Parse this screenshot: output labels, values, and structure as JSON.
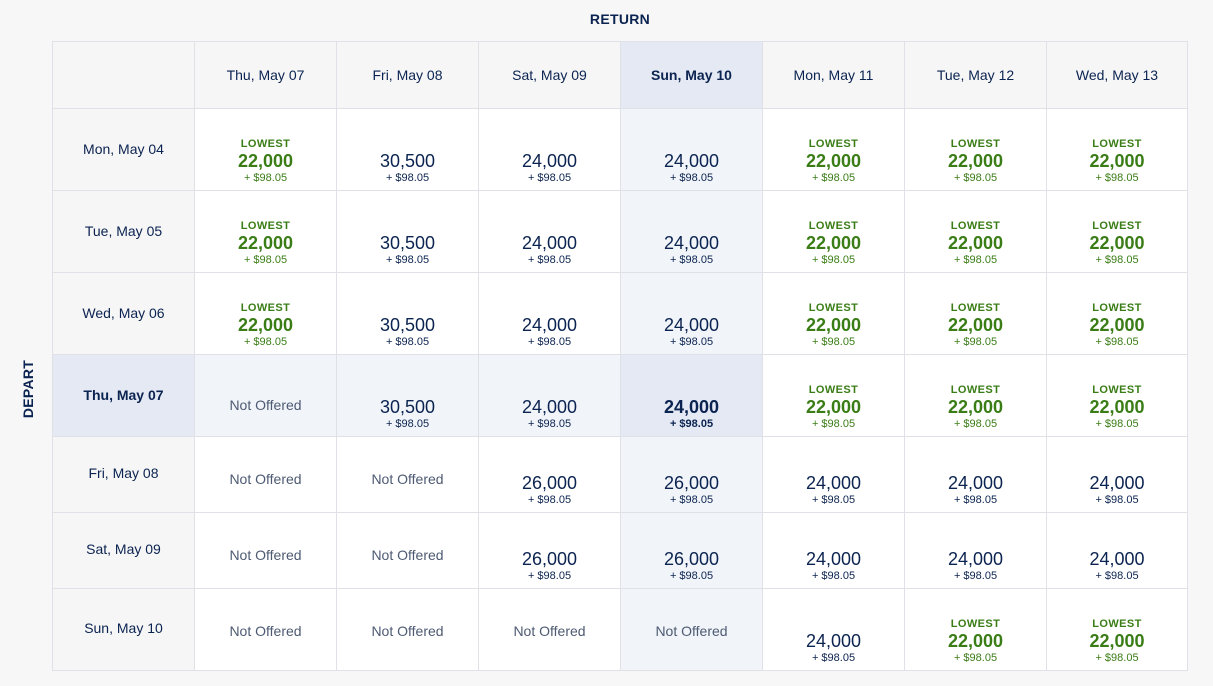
{
  "labels": {
    "return": "RETURN",
    "depart": "DEPART"
  },
  "columns": [
    "Thu, May 07",
    "Fri, May 08",
    "Sat, May 09",
    "Sun, May 10",
    "Mon, May 11",
    "Tue, May 12",
    "Wed, May 13"
  ],
  "selected_return_index": 3,
  "selected_depart_index": 3,
  "lowest_label": "LOWEST",
  "not_offered_label": "Not Offered",
  "rows": [
    {
      "depart": "Mon, May 04",
      "cells": [
        {
          "lowest": true,
          "miles": "22,000",
          "tax": "+ $98.05"
        },
        {
          "lowest": false,
          "miles": "30,500",
          "tax": "+ $98.05"
        },
        {
          "lowest": false,
          "miles": "24,000",
          "tax": "+ $98.05"
        },
        {
          "lowest": false,
          "miles": "24,000",
          "tax": "+ $98.05"
        },
        {
          "lowest": true,
          "miles": "22,000",
          "tax": "+ $98.05"
        },
        {
          "lowest": true,
          "miles": "22,000",
          "tax": "+ $98.05"
        },
        {
          "lowest": true,
          "miles": "22,000",
          "tax": "+ $98.05"
        }
      ]
    },
    {
      "depart": "Tue, May 05",
      "cells": [
        {
          "lowest": true,
          "miles": "22,000",
          "tax": "+ $98.05"
        },
        {
          "lowest": false,
          "miles": "30,500",
          "tax": "+ $98.05"
        },
        {
          "lowest": false,
          "miles": "24,000",
          "tax": "+ $98.05"
        },
        {
          "lowest": false,
          "miles": "24,000",
          "tax": "+ $98.05"
        },
        {
          "lowest": true,
          "miles": "22,000",
          "tax": "+ $98.05"
        },
        {
          "lowest": true,
          "miles": "22,000",
          "tax": "+ $98.05"
        },
        {
          "lowest": true,
          "miles": "22,000",
          "tax": "+ $98.05"
        }
      ]
    },
    {
      "depart": "Wed, May 06",
      "cells": [
        {
          "lowest": true,
          "miles": "22,000",
          "tax": "+ $98.05"
        },
        {
          "lowest": false,
          "miles": "30,500",
          "tax": "+ $98.05"
        },
        {
          "lowest": false,
          "miles": "24,000",
          "tax": "+ $98.05"
        },
        {
          "lowest": false,
          "miles": "24,000",
          "tax": "+ $98.05"
        },
        {
          "lowest": true,
          "miles": "22,000",
          "tax": "+ $98.05"
        },
        {
          "lowest": true,
          "miles": "22,000",
          "tax": "+ $98.05"
        },
        {
          "lowest": true,
          "miles": "22,000",
          "tax": "+ $98.05"
        }
      ]
    },
    {
      "depart": "Thu, May 07",
      "cells": [
        {
          "not_offered": true
        },
        {
          "lowest": false,
          "miles": "30,500",
          "tax": "+ $98.05"
        },
        {
          "lowest": false,
          "miles": "24,000",
          "tax": "+ $98.05"
        },
        {
          "lowest": false,
          "miles": "24,000",
          "tax": "+ $98.05"
        },
        {
          "lowest": true,
          "miles": "22,000",
          "tax": "+ $98.05"
        },
        {
          "lowest": true,
          "miles": "22,000",
          "tax": "+ $98.05"
        },
        {
          "lowest": true,
          "miles": "22,000",
          "tax": "+ $98.05"
        }
      ]
    },
    {
      "depart": "Fri, May 08",
      "cells": [
        {
          "not_offered": true
        },
        {
          "not_offered": true
        },
        {
          "lowest": false,
          "miles": "26,000",
          "tax": "+ $98.05"
        },
        {
          "lowest": false,
          "miles": "26,000",
          "tax": "+ $98.05"
        },
        {
          "lowest": false,
          "miles": "24,000",
          "tax": "+ $98.05"
        },
        {
          "lowest": false,
          "miles": "24,000",
          "tax": "+ $98.05"
        },
        {
          "lowest": false,
          "miles": "24,000",
          "tax": "+ $98.05"
        }
      ]
    },
    {
      "depart": "Sat, May 09",
      "cells": [
        {
          "not_offered": true
        },
        {
          "not_offered": true
        },
        {
          "lowest": false,
          "miles": "26,000",
          "tax": "+ $98.05"
        },
        {
          "lowest": false,
          "miles": "26,000",
          "tax": "+ $98.05"
        },
        {
          "lowest": false,
          "miles": "24,000",
          "tax": "+ $98.05"
        },
        {
          "lowest": false,
          "miles": "24,000",
          "tax": "+ $98.05"
        },
        {
          "lowest": false,
          "miles": "24,000",
          "tax": "+ $98.05"
        }
      ]
    },
    {
      "depart": "Sun, May 10",
      "cells": [
        {
          "not_offered": true
        },
        {
          "not_offered": true
        },
        {
          "not_offered": true
        },
        {
          "not_offered": true
        },
        {
          "lowest": false,
          "miles": "24,000",
          "tax": "+ $98.05"
        },
        {
          "lowest": true,
          "miles": "22,000",
          "tax": "+ $98.05"
        },
        {
          "lowest": true,
          "miles": "22,000",
          "tax": "+ $98.05"
        }
      ]
    }
  ]
}
